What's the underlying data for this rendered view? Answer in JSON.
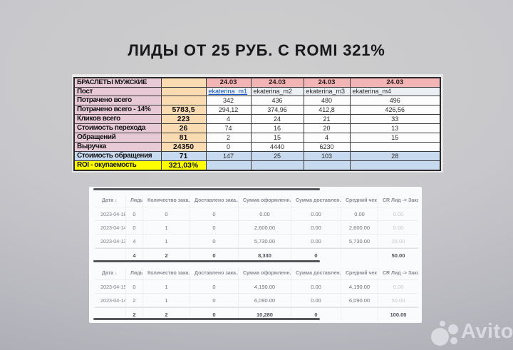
{
  "title": "ЛИДЫ ОТ 25 РУБ. С ROMI 321%",
  "colors": {
    "label_pink": "#e7cad6",
    "summary_tan": "#fbdcb2",
    "date_header_red": "#f3b4b5",
    "highlight_blue": "#c8daf0",
    "roi_yellow": "#ffff00",
    "link_blue": "#1155cc"
  },
  "main_table": {
    "rows": [
      {
        "label": "БРАСЛЕТЫ МУЖСКИЕ",
        "summary": "",
        "cells": [
          "24.03",
          "24.03",
          "24.03",
          "24.03"
        ]
      },
      {
        "label": "Пост",
        "summary": "",
        "cells": [
          "ekaterina_m1",
          "ekaterina_m2",
          "ekaterina_m3",
          "ekaterina_m4"
        ]
      },
      {
        "label": "Потрачено всего",
        "summary": "",
        "cells": [
          "342",
          "436",
          "480",
          "496"
        ]
      },
      {
        "label": "Потрачено всего - 14%",
        "summary": "5783,5",
        "cells": [
          "294,12",
          "374,96",
          "412,8",
          "426,56"
        ]
      },
      {
        "label": "Кликов всего",
        "summary": "223",
        "cells": [
          "4",
          "24",
          "21",
          "33"
        ]
      },
      {
        "label": "Стоимость перехода",
        "summary": "26",
        "cells": [
          "74",
          "16",
          "20",
          "13"
        ]
      },
      {
        "label": "Обращений",
        "summary": "81",
        "cells": [
          "2",
          "15",
          "4",
          "15"
        ]
      },
      {
        "label": "Выручка",
        "summary": "24350",
        "cells": [
          "0",
          "4440",
          "6230",
          ""
        ]
      },
      {
        "label": "Стоимость обращения",
        "summary": "71",
        "cells": [
          "147",
          "25",
          "103",
          "28"
        ]
      },
      {
        "label": "ROI - окупаемость",
        "summary": "321,03%",
        "cells": [
          "",
          "",
          "",
          ""
        ]
      }
    ]
  },
  "orders_tables": [
    {
      "headers": [
        "Дата ↓",
        "Лиды",
        "Количество зака...",
        "Доставлено зака...",
        "Сумма оформленн...",
        "Сумма доставлен...",
        "Средний чек",
        "CR Лид -> Заказ"
      ],
      "rows": [
        [
          "2023-04-18",
          "0",
          "0",
          "0",
          "0.00",
          "0.00",
          "0.00",
          "0.00"
        ],
        [
          "2023-04-14",
          "0",
          "1",
          "0",
          "2,600.00",
          "0.00",
          "2,600.00",
          "0.00"
        ],
        [
          "2023-04-13",
          "4",
          "1",
          "0",
          "5,730.00",
          "0.00",
          "5,730.00",
          "25.00"
        ]
      ],
      "total": [
        "",
        "4",
        "2",
        "0",
        "8,330",
        "0",
        "",
        "50.00"
      ]
    },
    {
      "headers": [
        "Дата ↓",
        "Лиды",
        "Количество зака...",
        "Доставлено зака...",
        "Сумма оформленн...",
        "Сумма доставлен...",
        "Средний чек",
        "CR Лид -> Заказ"
      ],
      "rows": [
        [
          "2023-04-15",
          "0",
          "1",
          "0",
          "4,190.00",
          "0.00",
          "4,190.00",
          "0.00"
        ],
        [
          "2023-04-14",
          "2",
          "1",
          "0",
          "6,090.00",
          "0.00",
          "6,090.00",
          "50.00"
        ]
      ],
      "total": [
        "",
        "2",
        "2",
        "0",
        "10,280",
        "0",
        "",
        "100.00"
      ]
    }
  ],
  "watermark": {
    "brand": "Avito"
  }
}
